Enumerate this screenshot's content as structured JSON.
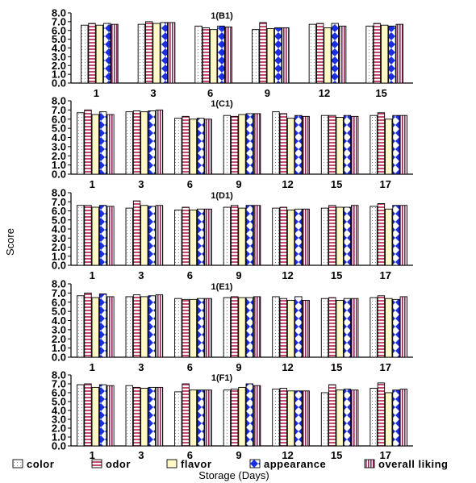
{
  "chart_data": {
    "type": "bar",
    "ylabel": "Score",
    "xlabel": "Storage (Days)",
    "ylim": [
      0,
      8
    ],
    "yticks": [
      "0.0",
      "1.0",
      "2.0",
      "3.0",
      "4.0",
      "5.0",
      "6.0",
      "7.0",
      "8.0"
    ],
    "series_names": [
      "color",
      "odor",
      "flavor",
      "appearance",
      "overall liking"
    ],
    "colors": {
      "color": "#ffffff",
      "odor": "#c44a6e",
      "flavor": "#fff9c8",
      "appearance": "#1a2fe0",
      "overall_liking": "#8a2a5a"
    },
    "panels": [
      {
        "title": "1(B1)",
        "categories": [
          "1",
          "3",
          "6",
          "9",
          "12",
          "15"
        ],
        "series": [
          {
            "name": "color",
            "values": [
              6.6,
              6.7,
              6.5,
              6.1,
              6.7,
              6.5
            ]
          },
          {
            "name": "odor",
            "values": [
              6.8,
              7.0,
              6.3,
              6.9,
              6.8,
              6.8
            ]
          },
          {
            "name": "flavor",
            "values": [
              6.6,
              6.8,
              6.1,
              6.2,
              6.3,
              6.6
            ]
          },
          {
            "name": "appearance",
            "values": [
              6.8,
              6.9,
              6.5,
              6.3,
              6.8,
              6.5
            ]
          },
          {
            "name": "overall liking",
            "values": [
              6.7,
              6.9,
              6.4,
              6.3,
              6.5,
              6.7
            ]
          }
        ]
      },
      {
        "title": "1(C1)",
        "categories": [
          "1",
          "3",
          "6",
          "9",
          "12",
          "15",
          "17"
        ],
        "series": [
          {
            "name": "color",
            "values": [
              6.7,
              6.8,
              6.1,
              6.4,
              6.8,
              6.4,
              6.4
            ]
          },
          {
            "name": "odor",
            "values": [
              7.0,
              6.9,
              6.3,
              6.3,
              6.6,
              6.4,
              6.7
            ]
          },
          {
            "name": "flavor",
            "values": [
              6.5,
              6.8,
              6.0,
              6.5,
              6.1,
              6.2,
              6.0
            ]
          },
          {
            "name": "appearance",
            "values": [
              6.8,
              6.9,
              6.1,
              6.6,
              6.4,
              6.4,
              6.4
            ]
          },
          {
            "name": "overall liking",
            "values": [
              6.5,
              7.0,
              6.0,
              6.6,
              6.3,
              6.3,
              6.4
            ]
          }
        ]
      },
      {
        "title": "1(D1)",
        "categories": [
          "1",
          "3",
          "6",
          "9",
          "12",
          "15",
          "17"
        ],
        "series": [
          {
            "name": "color",
            "values": [
              6.6,
              6.3,
              6.1,
              6.4,
              6.3,
              6.3,
              6.5
            ]
          },
          {
            "name": "odor",
            "values": [
              6.6,
              7.1,
              6.4,
              6.6,
              6.4,
              6.6,
              6.8
            ]
          },
          {
            "name": "flavor",
            "values": [
              6.4,
              6.6,
              6.1,
              6.3,
              6.1,
              6.4,
              6.2
            ]
          },
          {
            "name": "appearance",
            "values": [
              6.6,
              6.5,
              6.2,
              6.6,
              6.2,
              6.4,
              6.6
            ]
          },
          {
            "name": "overall liking",
            "values": [
              6.5,
              6.6,
              6.2,
              6.6,
              6.2,
              6.6,
              6.6
            ]
          }
        ]
      },
      {
        "title": "1(E1)",
        "categories": [
          "1",
          "3",
          "6",
          "9",
          "12",
          "15",
          "17"
        ],
        "series": [
          {
            "name": "color",
            "values": [
              6.7,
              6.6,
              6.4,
              6.5,
              6.6,
              6.4,
              6.5
            ]
          },
          {
            "name": "odor",
            "values": [
              7.0,
              6.8,
              6.3,
              6.6,
              6.4,
              6.5,
              6.7
            ]
          },
          {
            "name": "flavor",
            "values": [
              6.5,
              6.6,
              6.3,
              6.5,
              6.2,
              6.2,
              6.4
            ]
          },
          {
            "name": "appearance",
            "values": [
              6.9,
              6.7,
              6.4,
              6.5,
              6.6,
              6.4,
              6.3
            ]
          },
          {
            "name": "overall liking",
            "values": [
              6.6,
              6.8,
              6.4,
              6.6,
              6.2,
              6.4,
              6.6
            ]
          }
        ]
      },
      {
        "title": "1(F1)",
        "categories": [
          "1",
          "3",
          "6",
          "9",
          "12",
          "15",
          "17"
        ],
        "series": [
          {
            "name": "color",
            "values": [
              6.9,
              6.8,
              6.1,
              6.3,
              6.4,
              6.0,
              6.5
            ]
          },
          {
            "name": "odor",
            "values": [
              7.0,
              6.6,
              7.0,
              6.4,
              6.5,
              6.9,
              7.1
            ]
          },
          {
            "name": "flavor",
            "values": [
              6.6,
              6.5,
              6.3,
              6.6,
              6.2,
              6.3,
              6.0
            ]
          },
          {
            "name": "appearance",
            "values": [
              6.9,
              6.6,
              6.3,
              7.0,
              6.2,
              6.4,
              6.3
            ]
          },
          {
            "name": "overall liking",
            "values": [
              6.8,
              6.6,
              6.3,
              6.8,
              6.2,
              6.3,
              6.4
            ]
          }
        ]
      }
    ]
  }
}
